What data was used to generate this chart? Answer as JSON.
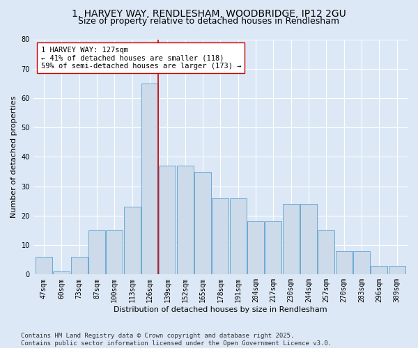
{
  "title1": "1, HARVEY WAY, RENDLESHAM, WOODBRIDGE, IP12 2GU",
  "title2": "Size of property relative to detached houses in Rendlesham",
  "xlabel": "Distribution of detached houses by size in Rendlesham",
  "ylabel": "Number of detached properties",
  "categories": [
    "47sqm",
    "60sqm",
    "73sqm",
    "87sqm",
    "100sqm",
    "113sqm",
    "126sqm",
    "139sqm",
    "152sqm",
    "165sqm",
    "178sqm",
    "191sqm",
    "204sqm",
    "217sqm",
    "230sqm",
    "244sqm",
    "257sqm",
    "270sqm",
    "283sqm",
    "296sqm",
    "309sqm"
  ],
  "values": [
    6,
    1,
    6,
    15,
    15,
    23,
    65,
    37,
    37,
    35,
    26,
    26,
    18,
    18,
    24,
    24,
    15,
    8,
    8,
    3,
    3
  ],
  "bar_color": "#ccdaea",
  "bar_edge_color": "#6aaad4",
  "vline_index": 6,
  "vline_color": "#cc0000",
  "annotation_text": "1 HARVEY WAY: 127sqm\n← 41% of detached houses are smaller (118)\n59% of semi-detached houses are larger (173) →",
  "annotation_box_color": "#cc0000",
  "ylim": [
    0,
    80
  ],
  "yticks": [
    0,
    10,
    20,
    30,
    40,
    50,
    60,
    70,
    80
  ],
  "bg_color": "#dce8f5",
  "plot_bg_color": "#dce8f5",
  "footer": "Contains HM Land Registry data © Crown copyright and database right 2025.\nContains public sector information licensed under the Open Government Licence v3.0.",
  "title1_fontsize": 10,
  "title2_fontsize": 9,
  "xlabel_fontsize": 8,
  "ylabel_fontsize": 8,
  "tick_fontsize": 7,
  "annotation_fontsize": 7.5,
  "footer_fontsize": 6.5
}
